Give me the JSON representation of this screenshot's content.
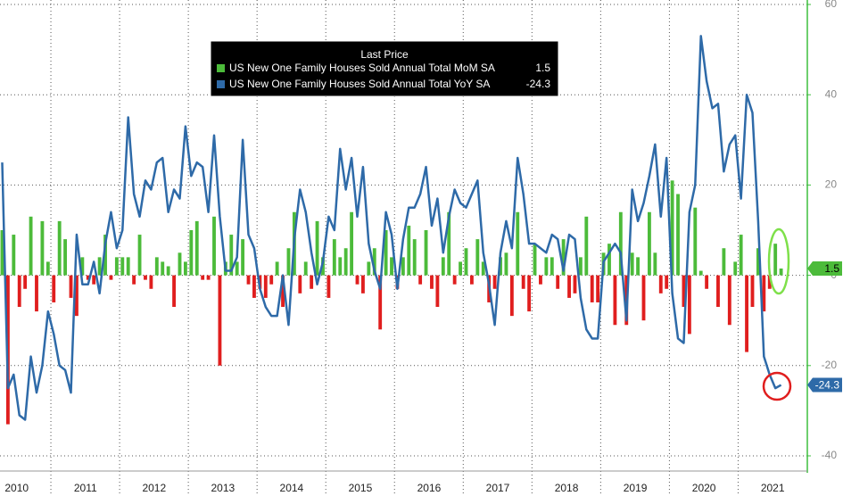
{
  "chart_data": {
    "type": "bar",
    "legend_title": "Last Price",
    "categories": [
      null,
      null,
      null,
      "2010",
      null,
      null,
      null,
      null,
      null,
      null,
      null,
      null,
      null,
      null,
      null,
      "2011",
      null,
      null,
      null,
      null,
      null,
      null,
      null,
      null,
      null,
      null,
      null,
      "2012",
      null,
      null,
      null,
      null,
      null,
      null,
      null,
      null,
      null,
      null,
      null,
      "2013",
      null,
      null,
      null,
      null,
      null,
      null,
      null,
      null,
      null,
      null,
      null,
      "2014",
      null,
      null,
      null,
      null,
      null,
      null,
      null,
      null,
      null,
      null,
      null,
      "2015",
      null,
      null,
      null,
      null,
      null,
      null,
      null,
      null,
      null,
      null,
      null,
      "2016",
      null,
      null,
      null,
      null,
      null,
      null,
      null,
      null,
      null,
      null,
      null,
      "2017",
      null,
      null,
      null,
      null,
      null,
      null,
      null,
      null,
      null,
      null,
      null,
      "2018",
      null,
      null,
      null,
      null,
      null,
      null,
      null,
      null,
      null,
      null,
      null,
      "2019",
      null,
      null,
      null,
      null,
      null,
      null,
      null,
      null,
      null,
      null,
      null,
      "2020",
      null,
      null,
      null,
      null,
      null,
      null,
      null,
      null,
      null,
      null,
      null,
      "2021",
      null
    ],
    "series": [
      {
        "name": "US New One Family Houses Sold Annual Total MoM SA",
        "type": "bar",
        "color": "#4cbb3a",
        "negative_color": "#e01e1e",
        "values": [
          10,
          -33,
          9,
          -7,
          -3,
          13,
          -8,
          12,
          3,
          -6,
          12,
          8,
          -5,
          -9,
          4,
          -1,
          -2,
          4,
          9,
          -1,
          4,
          4,
          4,
          -2,
          9,
          -1,
          -3,
          4,
          3,
          2,
          -7,
          5,
          3,
          10,
          12,
          -1,
          -1,
          13,
          -20,
          3,
          9,
          3,
          8,
          -2,
          -5,
          -3,
          -5,
          -2,
          3,
          -7,
          6,
          14,
          -4,
          3,
          -3,
          12,
          4,
          -5,
          8,
          4,
          6,
          14,
          -2,
          -4,
          3,
          6,
          -12,
          10,
          4,
          -3,
          4,
          11,
          8,
          -2,
          10,
          -3,
          -7,
          4,
          14,
          -2,
          3,
          6,
          -2,
          8,
          3,
          -6,
          -3,
          4,
          5,
          -9,
          14,
          -3,
          -8,
          7,
          -2,
          4,
          4,
          -3,
          8,
          -5,
          -4,
          4,
          13,
          -6,
          -6,
          5,
          7,
          -11,
          14,
          -11,
          5,
          4,
          -10,
          14,
          5,
          -4,
          -3,
          21,
          18,
          -7,
          -13,
          15,
          1,
          -3,
          0,
          -7,
          6,
          -11,
          3,
          9,
          -17,
          -7,
          6,
          -8,
          -3,
          7,
          1.5
        ]
      },
      {
        "name": "US New One Family Houses Sold Annual Total YoY SA",
        "type": "line",
        "color": "#2e6aa8",
        "values": [
          25,
          -25,
          -22,
          -31,
          -32,
          -18,
          -26,
          -20,
          -8,
          -13,
          -20,
          -21,
          -26,
          9,
          -2,
          -2,
          3,
          -4,
          7,
          14,
          6,
          10,
          35,
          18,
          13,
          21,
          19,
          25,
          26,
          14,
          19,
          17,
          33,
          22,
          25,
          24,
          14,
          31,
          13,
          1,
          1,
          4,
          30,
          9,
          6,
          -3,
          -7,
          -9,
          -9,
          0,
          -11,
          8,
          19,
          14,
          5,
          -2,
          3,
          13,
          10,
          28,
          19,
          26,
          13,
          24,
          7,
          1,
          -3,
          14,
          9,
          -3,
          8,
          15,
          15,
          18,
          24,
          11,
          17,
          5,
          13,
          19,
          16,
          15,
          18,
          21,
          5,
          -2,
          -11,
          5,
          12,
          6,
          26,
          18,
          7,
          7,
          6,
          5,
          9,
          8,
          1,
          9,
          8,
          -5,
          -12,
          -14,
          -14,
          3,
          5,
          7,
          5,
          -10,
          19,
          12,
          16,
          22,
          29,
          13,
          26,
          -4,
          -14,
          -15,
          14,
          20,
          53,
          43,
          37,
          38,
          23,
          29,
          31,
          17,
          40,
          36,
          12,
          -18,
          -22,
          -25,
          -24.3
        ]
      }
    ],
    "ylim": [
      -40,
      60
    ],
    "yticks": [
      60,
      40,
      20,
      0,
      -20,
      -40
    ],
    "grid": true
  }
}
